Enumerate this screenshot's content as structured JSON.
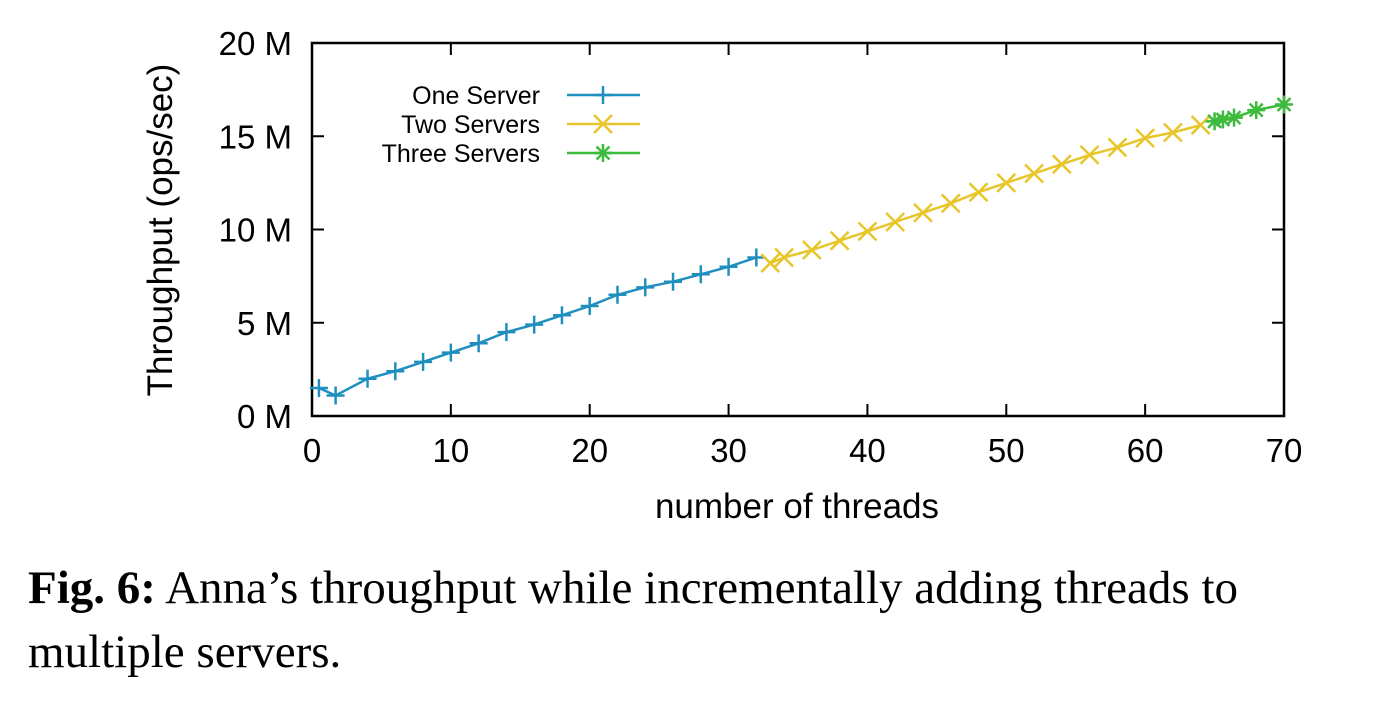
{
  "chart_data": {
    "type": "line",
    "xlabel": "number of threads",
    "ylabel": "Throughput (ops/sec)",
    "xlim": [
      0,
      70
    ],
    "ylim": [
      0,
      20
    ],
    "x_ticks": [
      "0",
      "10",
      "20",
      "30",
      "40",
      "50",
      "60",
      "70"
    ],
    "y_ticks": [
      "0 M",
      "5 M",
      "10 M",
      "15 M",
      "20 M"
    ],
    "grid": false,
    "legend_position": "top-left",
    "series": [
      {
        "name": "One Server",
        "color": "#1f8fbf",
        "marker": "plus",
        "x": [
          0.5,
          1.7,
          4,
          6,
          8,
          10,
          12,
          14,
          16,
          18,
          20,
          22,
          24,
          26,
          28,
          30,
          32
        ],
        "y": [
          1.5,
          1.1,
          2.0,
          2.4,
          2.9,
          3.4,
          3.9,
          4.5,
          4.9,
          5.4,
          5.9,
          6.5,
          6.9,
          7.2,
          7.6,
          8.0,
          8.5
        ]
      },
      {
        "name": "Two Servers",
        "color": "#e8c62a",
        "marker": "cross",
        "x": [
          33,
          34,
          36,
          38,
          40,
          42,
          44,
          46,
          48,
          50,
          52,
          54,
          56,
          58,
          60,
          62,
          64
        ],
        "y": [
          8.2,
          8.5,
          8.9,
          9.4,
          9.9,
          10.4,
          10.9,
          11.4,
          12.0,
          12.5,
          13.0,
          13.5,
          14.0,
          14.4,
          14.9,
          15.2,
          15.6
        ]
      },
      {
        "name": "Three Servers",
        "color": "#3dbb3d",
        "marker": "star",
        "x": [
          65,
          65.6,
          66.4,
          68,
          70
        ],
        "y": [
          15.8,
          15.9,
          16.0,
          16.4,
          16.7
        ]
      }
    ]
  },
  "caption": {
    "label": "Fig. 6:",
    "text": " Anna’s throughput while incrementally adding threads to multiple servers."
  }
}
